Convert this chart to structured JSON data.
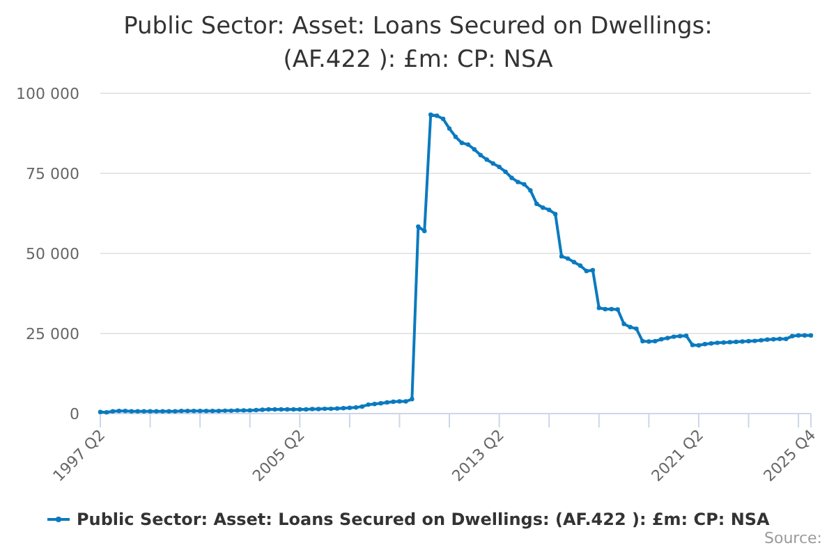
{
  "chart_data": {
    "type": "line",
    "title": "Public Sector: Asset: Loans Secured on Dwellings: (AF.422 ): £m: CP: NSA",
    "categories": [
      "1997 Q2",
      null,
      null,
      null,
      null,
      null,
      null,
      null,
      null,
      null,
      null,
      null,
      null,
      null,
      null,
      null,
      null,
      null,
      null,
      null,
      null,
      null,
      null,
      null,
      null,
      null,
      null,
      null,
      null,
      null,
      null,
      null,
      "2005 Q2",
      null,
      null,
      null,
      null,
      null,
      null,
      null,
      null,
      null,
      null,
      null,
      null,
      null,
      null,
      null,
      null,
      null,
      null,
      null,
      null,
      null,
      null,
      null,
      null,
      null,
      null,
      null,
      null,
      null,
      null,
      null,
      "2013 Q2",
      null,
      null,
      null,
      null,
      null,
      null,
      null,
      null,
      null,
      null,
      null,
      null,
      null,
      null,
      null,
      null,
      null,
      null,
      null,
      null,
      null,
      null,
      null,
      null,
      null,
      null,
      null,
      null,
      null,
      null,
      null,
      "2021 Q2",
      null,
      null,
      null,
      null,
      null,
      null,
      null,
      null,
      null,
      null,
      null,
      null,
      null,
      null,
      null,
      null,
      null,
      "2025 Q4"
    ],
    "series": [
      {
        "name": "Public Sector: Asset: Loans Secured on Dwellings: (AF.422 ): £m: CP: NSA",
        "color": "#0a7abf",
        "values": [
          500,
          400,
          700,
          800,
          800,
          700,
          700,
          700,
          700,
          700,
          700,
          700,
          700,
          800,
          800,
          800,
          800,
          800,
          800,
          800,
          900,
          900,
          1000,
          1000,
          1000,
          1100,
          1200,
          1300,
          1300,
          1300,
          1300,
          1300,
          1300,
          1300,
          1400,
          1400,
          1500,
          1500,
          1600,
          1700,
          1800,
          1900,
          2200,
          2800,
          3000,
          3200,
          3500,
          3700,
          3800,
          3800,
          4500,
          58400,
          57000,
          93300,
          93000,
          92000,
          89000,
          86400,
          84500,
          84000,
          82500,
          80700,
          79300,
          78100,
          77000,
          75500,
          73600,
          72300,
          71600,
          69700,
          65500,
          64300,
          63600,
          62300,
          49100,
          48400,
          47300,
          46200,
          44500,
          44800,
          33000,
          32600,
          32600,
          32500,
          28000,
          27000,
          26500,
          22600,
          22500,
          22600,
          23200,
          23600,
          24000,
          24200,
          24300,
          21400,
          21300,
          21700,
          21900,
          22100,
          22200,
          22300,
          22400,
          22500,
          22600,
          22700,
          22900,
          23100,
          23200,
          23300,
          23300,
          24200,
          24400,
          24400,
          24400
        ]
      }
    ],
    "ylim": [
      0,
      100000
    ],
    "yticks": [
      0,
      {
        "value": 25000,
        "label": "25 000"
      },
      {
        "value": 50000,
        "label": "50 000"
      },
      {
        "value": 75000,
        "label": "75 000"
      },
      {
        "value": 100000,
        "label": "100 000"
      }
    ],
    "grid": "y",
    "legend": "bottom",
    "marker": "circle",
    "line_style": "solid",
    "annotations": [
      "Source:"
    ]
  }
}
